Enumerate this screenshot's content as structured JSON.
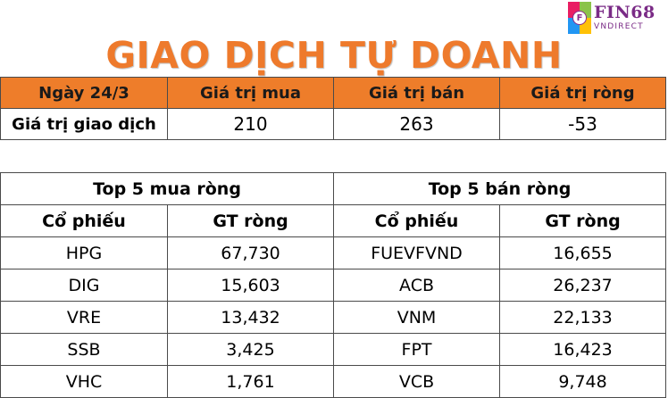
{
  "logo": {
    "name": "FIN68",
    "sub": "VNDIRECT"
  },
  "title": "GIAO DỊCH TỰ DOANH",
  "summary": {
    "headers": [
      "Ngày 24/3",
      "Giá trị mua",
      "Giá trị bán",
      "Giá trị ròng"
    ],
    "row": {
      "label": "Giá trị giao dịch",
      "buy": "210",
      "sell": "263",
      "net": "-53"
    }
  },
  "top5": {
    "buy_title": "Top 5 mua ròng",
    "sell_title": "Top 5 bán ròng",
    "col_stock": "Cổ phiếu",
    "col_value": "GT ròng",
    "buy": [
      {
        "stock": "HPG",
        "value": "67,730"
      },
      {
        "stock": "DIG",
        "value": "15,603"
      },
      {
        "stock": "VRE",
        "value": "13,432"
      },
      {
        "stock": "SSB",
        "value": "3,425"
      },
      {
        "stock": "VHC",
        "value": "1,761"
      }
    ],
    "sell": [
      {
        "stock": "FUEVFVND",
        "value": "16,655"
      },
      {
        "stock": "ACB",
        "value": "26,237"
      },
      {
        "stock": "VNM",
        "value": "22,133"
      },
      {
        "stock": "FPT",
        "value": "16,423"
      },
      {
        "stock": "VCB",
        "value": "9,748"
      }
    ]
  }
}
